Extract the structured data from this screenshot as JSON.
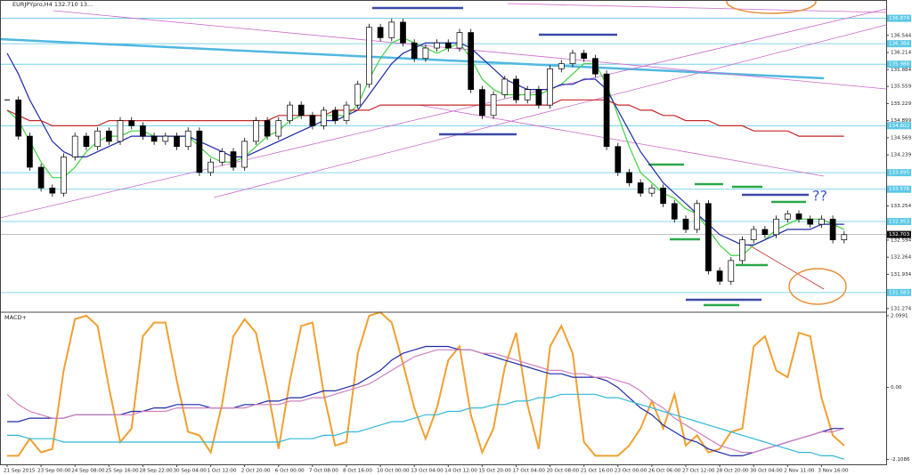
{
  "chart_data": [
    {
      "type": "candlestick",
      "title": "EURJPYpro,H4  132.710 13...",
      "categories": [
        "21 Sep 2015",
        null,
        null,
        "23 Sep 00:00",
        null,
        null,
        "24 Sep 08:00",
        null,
        null,
        "25 Sep 16:00",
        null,
        null,
        "28 Sep 22:00",
        null,
        null,
        "30 Sep 04:00",
        null,
        null,
        "1 Oct 12:00",
        null,
        null,
        "2 Oct 20:00",
        null,
        null,
        "6 Oct 00:00",
        null,
        null,
        "7 Oct 08:00",
        null,
        null,
        "8 Oct 16:00",
        null,
        null,
        "10 Oct 00:00",
        null,
        null,
        "13 Oct 04:00",
        null,
        null,
        "14 Oct 12:00",
        null,
        null,
        "15 Oct 20:00",
        null,
        null,
        "17 Oct 04:00",
        null,
        null,
        "20 Oct 08:00",
        null,
        null,
        "21 Oct 16:00",
        null,
        null,
        "23 Oct 00:00",
        null,
        null,
        "26 Oct 06:00",
        null,
        null,
        "27 Oct 12:00",
        null,
        null,
        "28 Oct 20:00",
        null,
        null,
        "30 Oct 04:00",
        null,
        null,
        "2 Nov 11:00",
        null,
        null,
        "3 Nov 16:00",
        null,
        null
      ],
      "close": [
        135.3,
        134.6,
        134.0,
        133.6,
        133.5,
        134.2,
        134.6,
        134.4,
        134.7,
        134.5,
        134.9,
        134.8,
        134.6,
        134.5,
        134.6,
        134.4,
        134.7,
        133.9,
        134.1,
        134.3,
        134.0,
        134.5,
        134.9,
        134.6,
        134.9,
        135.2,
        135.0,
        134.8,
        135.1,
        134.9,
        135.2,
        135.6,
        136.7,
        136.5,
        136.8,
        136.4,
        136.1,
        136.3,
        136.4,
        136.3,
        136.6,
        135.5,
        135.0,
        135.4,
        135.7,
        135.3,
        135.5,
        135.2,
        135.9,
        136.0,
        136.2,
        136.1,
        135.8,
        134.4,
        133.9,
        133.7,
        133.5,
        133.6,
        133.3,
        133.0,
        132.8,
        133.3,
        132.0,
        131.8,
        132.2,
        132.6,
        132.8,
        132.7,
        133.0,
        133.1,
        133.0,
        132.9,
        133.0,
        132.6,
        132.7
      ],
      "series": [
        {
          "color": "#3fd23f",
          "values": [
            135.1,
            134.9,
            134.5,
            134.1,
            133.8,
            133.8,
            134.0,
            134.3,
            134.5,
            134.6,
            134.6,
            134.7,
            134.7,
            134.6,
            134.6,
            134.6,
            134.6,
            134.4,
            134.2,
            134.1,
            134.1,
            134.2,
            134.4,
            134.6,
            134.7,
            134.9,
            135.0,
            135.0,
            135.0,
            135.0,
            135.0,
            135.2,
            135.7,
            136.1,
            136.4,
            136.5,
            136.4,
            136.3,
            136.2,
            136.3,
            136.4,
            136.1,
            135.7,
            135.5,
            135.4,
            135.4,
            135.4,
            135.4,
            135.5,
            135.6,
            135.8,
            136.0,
            136.0,
            135.6,
            135.0,
            134.4,
            133.9,
            133.7,
            133.5,
            133.4,
            133.2,
            133.1,
            132.8,
            132.5,
            132.3,
            132.3,
            132.5,
            132.6,
            132.8,
            132.9,
            133.0,
            133.0,
            133.0,
            132.9,
            132.8
          ]
        },
        {
          "color": "#1f2aa8",
          "values": [
            136.2,
            135.8,
            135.3,
            134.9,
            134.5,
            134.3,
            134.2,
            134.2,
            134.3,
            134.4,
            134.5,
            134.6,
            134.6,
            134.6,
            134.6,
            134.6,
            134.6,
            134.5,
            134.4,
            134.3,
            134.2,
            134.2,
            134.3,
            134.4,
            134.5,
            134.6,
            134.7,
            134.8,
            134.9,
            134.9,
            135.0,
            135.1,
            135.4,
            135.7,
            136.0,
            136.2,
            136.3,
            136.4,
            136.4,
            136.4,
            136.4,
            136.3,
            136.1,
            135.9,
            135.7,
            135.6,
            135.5,
            135.5,
            135.5,
            135.6,
            135.6,
            135.7,
            135.7,
            135.5,
            135.1,
            134.7,
            134.3,
            134.0,
            133.7,
            133.5,
            133.3,
            133.1,
            132.9,
            132.7,
            132.6,
            132.5,
            132.5,
            132.6,
            132.7,
            132.8,
            132.8,
            132.8,
            132.9,
            132.9,
            132.9
          ]
        },
        {
          "color": "#c42a2a",
          "values": [
            135.1,
            135.0,
            134.9,
            134.9,
            134.8,
            134.8,
            134.8,
            134.8,
            134.8,
            134.9,
            134.9,
            134.9,
            134.9,
            134.9,
            134.9,
            134.9,
            134.9,
            134.9,
            134.9,
            134.9,
            134.9,
            134.9,
            134.9,
            134.9,
            135.0,
            135.0,
            135.0,
            135.0,
            135.0,
            135.1,
            135.1,
            135.1,
            135.1,
            135.2,
            135.2,
            135.2,
            135.2,
            135.2,
            135.2,
            135.2,
            135.2,
            135.2,
            135.2,
            135.2,
            135.2,
            135.2,
            135.2,
            135.2,
            135.2,
            135.3,
            135.3,
            135.3,
            135.3,
            135.3,
            135.2,
            135.2,
            135.1,
            135.1,
            135.0,
            135.0,
            134.9,
            134.9,
            134.9,
            134.8,
            134.8,
            134.8,
            134.7,
            134.7,
            134.7,
            134.7,
            134.6,
            134.6,
            134.6,
            134.6,
            134.6
          ]
        }
      ],
      "ylim": [
        131.22,
        137.09
      ],
      "yticks": [
        136.544,
        136.214,
        135.884,
        135.559,
        135.229,
        134.899,
        134.569,
        134.239,
        133.909,
        133.584,
        133.254,
        132.924,
        132.594,
        132.264,
        131.934,
        131.604,
        131.274
      ],
      "levels": [
        136.874,
        136.384,
        135.988,
        134.802,
        133.895,
        133.576,
        132.953,
        131.583
      ],
      "level_color": "#5bc8e6",
      "current_price": 132.703,
      "annotation": "??"
    },
    {
      "type": "line",
      "title": "MACD+",
      "series": [
        {
          "color": "#f0a030",
          "values": [
            -2.0,
            -2.0,
            -1.5,
            -1.9,
            -1.8,
            0.5,
            2.0,
            2.1,
            1.8,
            0.0,
            -1.6,
            -1.2,
            1.5,
            1.9,
            1.9,
            0.2,
            -1.3,
            -1.4,
            -1.9,
            -0.5,
            1.5,
            2.0,
            1.6,
            0.0,
            -1.8,
            0.2,
            1.8,
            1.9,
            -0.2,
            -1.7,
            -1.6,
            1.0,
            2.1,
            2.2,
            1.9,
            0.7,
            -0.6,
            -1.5,
            -0.6,
            0.8,
            1.2,
            -0.8,
            -1.9,
            -1.2,
            0.6,
            1.6,
            -0.5,
            -1.8,
            1.2,
            1.8,
            1.0,
            -1.6,
            -2.0,
            -2.0,
            -2.0,
            -1.7,
            -1.2,
            -0.4,
            -1.2,
            -0.2,
            -1.7,
            -1.4,
            -1.9,
            -1.8,
            -1.3,
            -1.2,
            1.2,
            1.5,
            0.5,
            0.3,
            1.6,
            1.5,
            -0.3,
            -1.4,
            -1.7
          ]
        },
        {
          "color": "#1f2aa8",
          "values": [
            -1.0,
            -1.0,
            -0.9,
            -0.9,
            -0.9,
            -0.9,
            -0.8,
            -0.8,
            -0.8,
            -0.8,
            -0.8,
            -0.7,
            -0.7,
            -0.6,
            -0.6,
            -0.5,
            -0.5,
            -0.5,
            -0.6,
            -0.6,
            -0.6,
            -0.5,
            -0.5,
            -0.4,
            -0.4,
            -0.3,
            -0.3,
            -0.2,
            -0.1,
            -0.1,
            0.0,
            0.1,
            0.3,
            0.5,
            0.8,
            1.0,
            1.1,
            1.2,
            1.2,
            1.2,
            1.1,
            1.1,
            1.0,
            0.9,
            0.8,
            0.7,
            0.6,
            0.5,
            0.4,
            0.4,
            0.3,
            0.3,
            0.3,
            0.2,
            0.0,
            -0.3,
            -0.6,
            -0.8,
            -1.1,
            -1.3,
            -1.5,
            -1.6,
            -1.8,
            -1.9,
            -2.0,
            -2.0,
            -1.9,
            -1.8,
            -1.7,
            -1.6,
            -1.5,
            -1.4,
            -1.3,
            -1.2,
            -1.2
          ]
        },
        {
          "color": "#d080c0",
          "values": [
            -0.2,
            -0.5,
            -0.7,
            -0.8,
            -0.9,
            -0.9,
            -0.8,
            -0.8,
            -0.8,
            -0.8,
            -0.8,
            -0.8,
            -0.7,
            -0.7,
            -0.7,
            -0.6,
            -0.6,
            -0.6,
            -0.6,
            -0.6,
            -0.6,
            -0.6,
            -0.5,
            -0.5,
            -0.5,
            -0.4,
            -0.4,
            -0.3,
            -0.3,
            -0.2,
            -0.1,
            0.0,
            0.1,
            0.3,
            0.5,
            0.7,
            0.9,
            1.0,
            1.1,
            1.1,
            1.1,
            1.1,
            1.0,
            1.0,
            0.9,
            0.8,
            0.7,
            0.6,
            0.5,
            0.5,
            0.4,
            0.4,
            0.3,
            0.3,
            0.2,
            0.1,
            -0.1,
            -0.4,
            -0.6,
            -0.9,
            -1.1,
            -1.3,
            -1.5,
            -1.7,
            -1.8,
            -1.9,
            -1.9,
            -1.8,
            -1.7,
            -1.6,
            -1.5,
            -1.4,
            -1.3,
            -1.3,
            -1.2
          ]
        },
        {
          "color": "#30b8d8",
          "values": [
            -1.4,
            -1.4,
            -1.5,
            -1.5,
            -1.5,
            -1.6,
            -1.6,
            -1.6,
            -1.6,
            -1.6,
            -1.6,
            -1.6,
            -1.6,
            -1.6,
            -1.6,
            -1.6,
            -1.6,
            -1.6,
            -1.6,
            -1.6,
            -1.6,
            -1.6,
            -1.6,
            -1.6,
            -1.6,
            -1.5,
            -1.5,
            -1.5,
            -1.4,
            -1.4,
            -1.3,
            -1.3,
            -1.2,
            -1.1,
            -1.0,
            -1.0,
            -0.9,
            -0.8,
            -0.8,
            -0.7,
            -0.7,
            -0.6,
            -0.6,
            -0.5,
            -0.5,
            -0.4,
            -0.4,
            -0.3,
            -0.3,
            -0.2,
            -0.2,
            -0.2,
            -0.2,
            -0.3,
            -0.3,
            -0.4,
            -0.5,
            -0.6,
            -0.7,
            -0.8,
            -0.9,
            -1.0,
            -1.1,
            -1.2,
            -1.3,
            -1.4,
            -1.5,
            -1.6,
            -1.7,
            -1.8,
            -1.9,
            -1.9,
            -2.0,
            -2.0,
            -2.1
          ]
        }
      ],
      "ylim": [
        -2.25,
        2.15
      ],
      "yticks": [
        2.0991,
        {
          "value": 0,
          "label": "0.00"
        },
        -2.1086
      ]
    }
  ]
}
